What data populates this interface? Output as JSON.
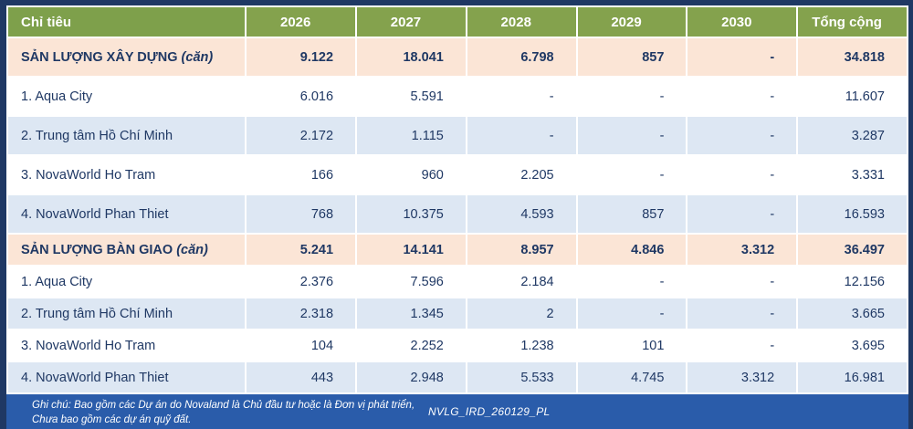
{
  "table": {
    "columns": [
      "Chỉ tiêu",
      "2026",
      "2027",
      "2028",
      "2029",
      "2030",
      "Tổng cộng"
    ],
    "rows": [
      {
        "type": "section",
        "label": "SẢN LƯỢNG XÂY DỰNG",
        "unit": "(căn)",
        "values": [
          "9.122",
          "18.041",
          "6.798",
          "857",
          "-",
          "34.818"
        ]
      },
      {
        "type": "detail",
        "label": "1. Aqua City",
        "values": [
          "6.016",
          "5.591",
          "-",
          "-",
          "-",
          "11.607"
        ]
      },
      {
        "type": "detail",
        "label": "2. Trung tâm Hồ Chí Minh",
        "values": [
          "2.172",
          "1.115",
          "-",
          "-",
          "-",
          "3.287"
        ]
      },
      {
        "type": "detail",
        "label": "3. NovaWorld Ho Tram",
        "values": [
          "166",
          "960",
          "2.205",
          "-",
          "-",
          "3.331"
        ]
      },
      {
        "type": "detail",
        "label": "4. NovaWorld Phan Thiet",
        "values": [
          "768",
          "10.375",
          "4.593",
          "857",
          "-",
          "16.593"
        ]
      },
      {
        "type": "section",
        "label": "SẢN LƯỢNG BÀN GIAO",
        "unit": "(căn)",
        "values": [
          "5.241",
          "14.141",
          "8.957",
          "4.846",
          "3.312",
          "36.497"
        ]
      },
      {
        "type": "detail",
        "label": "1. Aqua City",
        "values": [
          "2.376",
          "7.596",
          "2.184",
          "-",
          "-",
          "12.156"
        ]
      },
      {
        "type": "detail",
        "label": "2. Trung tâm Hồ Chí Minh",
        "values": [
          "2.318",
          "1.345",
          "2",
          "-",
          "-",
          "3.665"
        ]
      },
      {
        "type": "detail",
        "label": "3. NovaWorld Ho Tram",
        "values": [
          "104",
          "2.252",
          "1.238",
          "101",
          "-",
          "3.695"
        ]
      },
      {
        "type": "detail",
        "label": "4. NovaWorld Phan Thiet",
        "values": [
          "443",
          "2.948",
          "5.533",
          "4.745",
          "3.312",
          "16.981"
        ]
      }
    ]
  },
  "footer": {
    "note_line1": "Ghi chú: Bao gồm các Dự án do Novaland là Chủ đầu tư hoặc là Đơn vị phát triển,",
    "note_line2": "Chưa bao gồm các dự án quỹ đất.",
    "doc_code": "NVLG_IRD_260129_PL"
  },
  "colors": {
    "header_green": "#84a24d",
    "section_peach": "#fbe5d6",
    "stripe_blue": "#dde7f3",
    "footer_blue": "#2a5caa",
    "border_navy": "#1f3864",
    "text_navy": "#1f3864"
  }
}
